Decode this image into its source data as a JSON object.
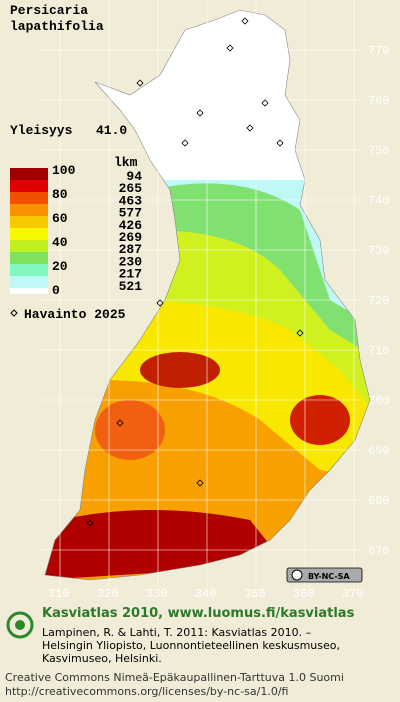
{
  "header": {
    "title_lines": [
      "Persicaria",
      "lapathifolia"
    ],
    "frequency_label": "Yleisyys",
    "frequency_value": "41.0"
  },
  "legend": {
    "count_header": "lkm",
    "scale_labels": [
      "100",
      "80",
      "60",
      "40",
      "20",
      "0"
    ],
    "counts": [
      "94",
      "265",
      "463",
      "577",
      "426",
      "269",
      "287",
      "230",
      "217",
      "521"
    ],
    "observation_label": "Havainto 2025"
  },
  "grid": {
    "north_labels": [
      "770",
      "760",
      "750",
      "740",
      "730",
      "720",
      "710",
      "700",
      "690",
      "680",
      "670"
    ],
    "east_labels": [
      "310",
      "320",
      "330",
      "340",
      "350",
      "360",
      "370"
    ]
  },
  "badge": {
    "text": "BY-NC-SA"
  },
  "footer": {
    "atlas": "Kasviatlas 2010, www.luomus.fi/kasviatlas",
    "citation_lines": [
      "Lampinen, R. & Lahti, T. 2011: Kasviatlas 2010. –",
      "Helsingin Yliopisto, Luonnontieteellinen keskusmuseo,",
      "Kasvimuseo, Helsinki."
    ],
    "license": "Creative Commons Nimeä-Epäkaupallinen-Tarttuva 1.0 Suomi",
    "url": "http://creativecommons.org/licenses/by-nc-sa/1.0/fi"
  }
}
